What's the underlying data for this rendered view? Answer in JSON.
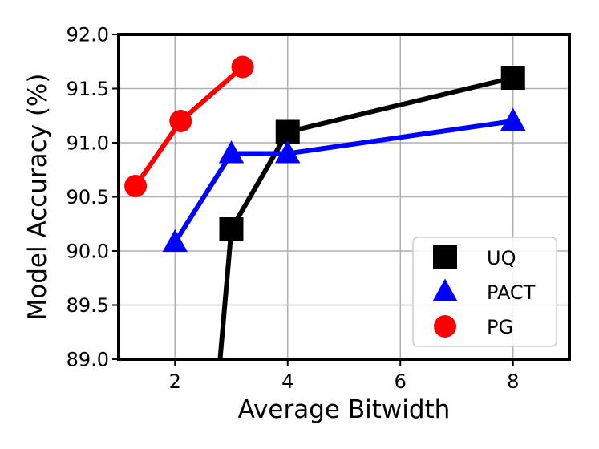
{
  "chart_data": {
    "type": "line",
    "xlabel": "Average Bitwidth",
    "ylabel": "Model Accuracy (%)",
    "xlim": [
      1.0,
      9.0
    ],
    "ylim": [
      89.0,
      92.0
    ],
    "xticks": [
      2,
      4,
      6,
      8
    ],
    "xtick_labels": [
      "2",
      "4",
      "6",
      "8"
    ],
    "yticks": [
      89.0,
      89.5,
      90.0,
      90.5,
      91.0,
      91.5,
      92.0
    ],
    "ytick_labels": [
      "89.0",
      "89.5",
      "90.0",
      "90.5",
      "91.0",
      "91.5",
      "92.0"
    ],
    "grid": true,
    "legend_position": "lower right",
    "series": [
      {
        "name": "UQ",
        "color": "#000000",
        "marker": "square",
        "x": [
          2.8,
          3,
          4,
          8
        ],
        "y": [
          89.0,
          90.2,
          91.1,
          91.6
        ],
        "marker_mask": [
          false,
          true,
          true,
          true
        ]
      },
      {
        "name": "PACT",
        "color": "#0000ff",
        "marker": "triangle",
        "x": [
          2,
          3,
          4,
          8
        ],
        "y": [
          90.08,
          90.9,
          90.9,
          91.2
        ],
        "marker_mask": [
          true,
          true,
          true,
          true
        ]
      },
      {
        "name": "PG",
        "color": "#ff0000",
        "marker": "circle",
        "x": [
          1.3,
          2.1,
          3.2
        ],
        "y": [
          90.6,
          91.2,
          91.7
        ],
        "marker_mask": [
          true,
          true,
          true
        ]
      }
    ]
  }
}
